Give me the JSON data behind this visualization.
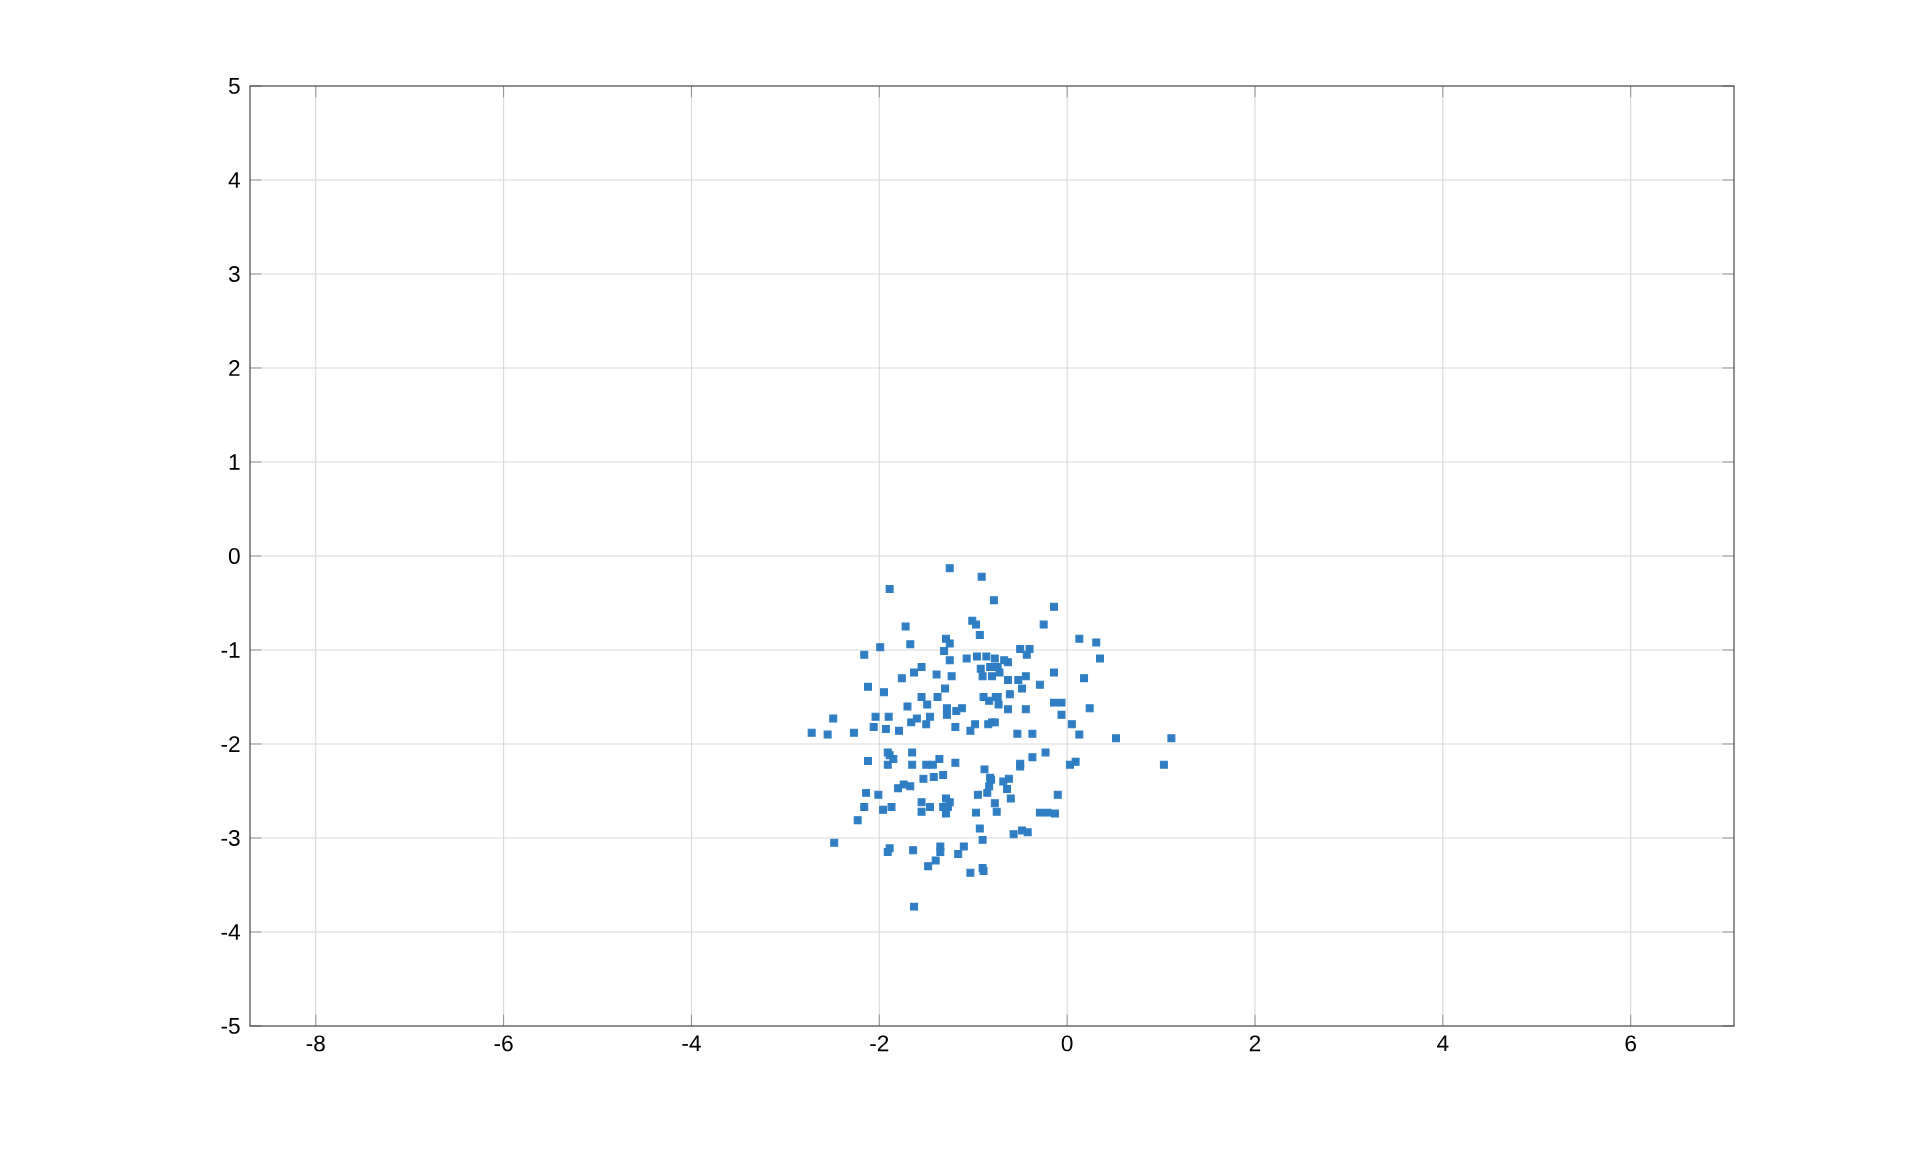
{
  "chart_data": {
    "type": "scatter",
    "color": "#2f7ec4",
    "marker": "square",
    "grid": true,
    "xlim": [
      -8.7,
      7.1
    ],
    "xticks": [
      -8,
      -6,
      -4,
      -2,
      0,
      2,
      4,
      6
    ],
    "ylim": [
      -5,
      5
    ],
    "yticks": [
      -5,
      -4,
      -3,
      -2,
      -1,
      0,
      1,
      2,
      3,
      4,
      5
    ],
    "x": [
      -1.25,
      -0.91,
      -1.89,
      -0.78,
      -1.01,
      -0.97,
      -1.72,
      -0.93,
      -1.29,
      -1.25,
      -1.67,
      -1.99,
      -2.16,
      -1.31,
      -1.07,
      -0.96,
      -0.86,
      -1.25,
      -0.77,
      -1.55,
      -0.92,
      -0.79,
      -1.63,
      -1.76,
      -1.39,
      -1.23,
      -0.8,
      -2.12,
      -1.3,
      -1.95,
      -1.38,
      -1.55,
      -0.89,
      -1.7,
      -1.49,
      -1.28,
      -1.12,
      -1.18,
      -0.83,
      -0.76,
      -2.49,
      -2.04,
      -1.9,
      -1.6,
      -1.46,
      -1.28,
      -2.72,
      -2.55,
      -2.27,
      -2.06,
      -1.93,
      -1.79,
      -1.66,
      -1.5,
      -1.19,
      -1.03,
      -0.98,
      -0.8,
      -0.14,
      -0.25,
      0.13,
      0.31,
      -0.5,
      -0.4,
      -0.43,
      0.35,
      -0.67,
      -0.63,
      -0.82,
      -0.74,
      -0.72,
      -0.14,
      -0.9,
      -0.44,
      0.18,
      -0.63,
      -0.52,
      -0.29,
      -0.48,
      -0.61,
      -0.74,
      -0.73,
      -0.14,
      -0.06,
      -0.44,
      -0.63,
      0.24,
      -0.06,
      0.05,
      -0.84,
      -0.77,
      0.13,
      0.52,
      1.11,
      -0.53,
      -0.37,
      -2.12,
      -1.91,
      -1.89,
      -1.85,
      -1.91,
      -1.65,
      -1.65,
      -1.5,
      -1.43,
      -1.36,
      -1.19,
      -1.53,
      -1.42,
      -1.32,
      -1.74,
      -1.67,
      -1.8,
      -2.14,
      -2.01,
      -1.29,
      -1.25,
      -1.55,
      -1.46,
      -1.32,
      -1.27,
      -1.29,
      -1.55,
      -1.87,
      -1.96,
      -2.16,
      -2.23,
      -0.97,
      -0.95,
      -0.85,
      -0.93,
      -2.48,
      -1.89,
      -1.91,
      -1.64,
      -1.35,
      -1.35,
      -1.1,
      -1.16,
      -1.4,
      -1.48,
      -1.03,
      -0.9,
      -1.63,
      -0.82,
      -0.88,
      0.03,
      0.09,
      1.03,
      -0.1,
      -0.29,
      -0.21,
      -0.13,
      -0.57,
      -0.48,
      -0.42,
      -0.9,
      -0.89,
      -0.23,
      -0.37,
      -0.5,
      -0.64,
      -0.6,
      -0.75,
      -0.77,
      -0.68,
      -0.83,
      -0.81,
      -0.62,
      -0.5
    ],
    "values": [
      -0.13,
      -0.22,
      -0.35,
      -0.47,
      -0.69,
      -0.73,
      -0.75,
      -0.84,
      -0.88,
      -0.93,
      -0.94,
      -0.97,
      -1.05,
      -1.01,
      -1.09,
      -1.07,
      -1.07,
      -1.11,
      -1.09,
      -1.18,
      -1.2,
      -1.18,
      -1.24,
      -1.3,
      -1.26,
      -1.28,
      -1.28,
      -1.39,
      -1.41,
      -1.45,
      -1.5,
      -1.5,
      -1.5,
      -1.6,
      -1.58,
      -1.62,
      -1.62,
      -1.65,
      -1.54,
      -1.5,
      -1.73,
      -1.71,
      -1.71,
      -1.73,
      -1.71,
      -1.69,
      -1.88,
      -1.9,
      -1.88,
      -1.82,
      -1.84,
      -1.86,
      -1.77,
      -1.79,
      -1.82,
      -1.86,
      -1.79,
      -1.77,
      -0.54,
      -0.73,
      -0.88,
      -0.92,
      -0.99,
      -0.99,
      -1.05,
      -1.09,
      -1.11,
      -1.13,
      -1.18,
      -1.18,
      -1.24,
      -1.24,
      -1.28,
      -1.28,
      -1.3,
      -1.32,
      -1.32,
      -1.37,
      -1.41,
      -1.47,
      -1.5,
      -1.58,
      -1.56,
      -1.56,
      -1.63,
      -1.63,
      -1.62,
      -1.69,
      -1.79,
      -1.79,
      -1.77,
      -1.9,
      -1.94,
      -1.94,
      -1.89,
      -1.89,
      -2.18,
      -2.09,
      -2.12,
      -2.16,
      -2.22,
      -2.09,
      -2.22,
      -2.22,
      -2.22,
      -2.16,
      -2.2,
      -2.37,
      -2.35,
      -2.33,
      -2.43,
      -2.45,
      -2.47,
      -2.52,
      -2.54,
      -2.58,
      -2.62,
      -2.62,
      -2.67,
      -2.67,
      -2.67,
      -2.74,
      -2.72,
      -2.67,
      -2.7,
      -2.67,
      -2.81,
      -2.73,
      -2.54,
      -2.52,
      -2.9,
      -3.05,
      -3.11,
      -3.15,
      -3.13,
      -3.09,
      -3.15,
      -3.09,
      -3.17,
      -3.24,
      -3.3,
      -3.37,
      -3.32,
      -3.73,
      -2.36,
      -2.27,
      -2.22,
      -2.19,
      -2.22,
      -2.54,
      -2.73,
      -2.73,
      -2.74,
      -2.96,
      -2.92,
      -2.94,
      -3.02,
      -3.35,
      -2.09,
      -2.14,
      -2.24,
      -2.48,
      -2.58,
      -2.72,
      -2.63,
      -2.4,
      -2.45,
      -2.38,
      -2.37,
      -2.21
    ]
  }
}
